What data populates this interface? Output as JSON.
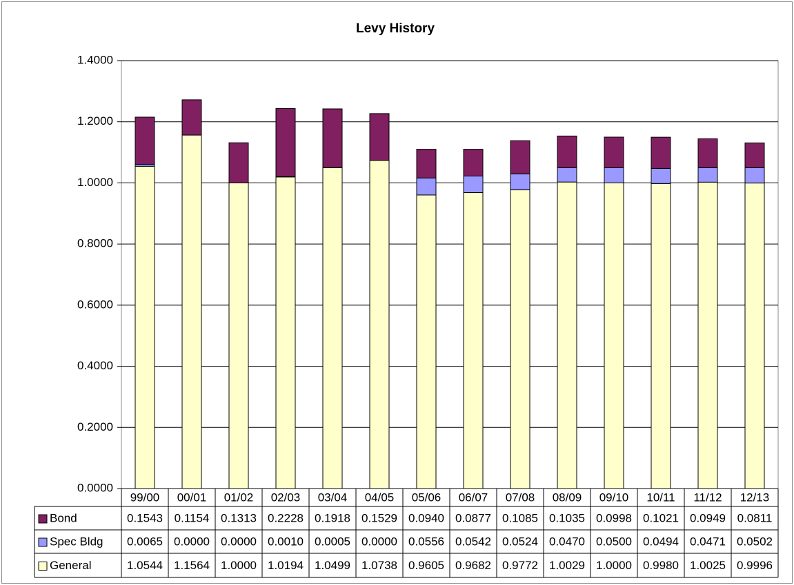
{
  "chart_data": {
    "type": "stacked_bar",
    "title": "Levy History",
    "categories": [
      "99/00",
      "00/01",
      "01/02",
      "02/03",
      "03/04",
      "04/05",
      "05/06",
      "06/07",
      "07/08",
      "08/09",
      "09/10",
      "10/11",
      "11/12",
      "12/13"
    ],
    "series": [
      {
        "name": "Bond",
        "color": "#802060",
        "values": [
          0.1543,
          0.1154,
          0.1313,
          0.2228,
          0.1918,
          0.1529,
          0.094,
          0.0877,
          0.1085,
          0.1035,
          0.0998,
          0.1021,
          0.0949,
          0.0811
        ],
        "value_labels": [
          "0.1543",
          "0.1154",
          "0.1313",
          "0.2228",
          "0.1918",
          "0.1529",
          "0.0940",
          "0.0877",
          "0.1085",
          "0.1035",
          "0.0998",
          "0.1021",
          "0.0949",
          "0.0811"
        ]
      },
      {
        "name": "Spec Bldg",
        "color": "#9999ff",
        "values": [
          0.0065,
          0,
          0,
          0.001,
          0.0005,
          0,
          0.0556,
          0.0542,
          0.0524,
          0.047,
          0.05,
          0.0494,
          0.0471,
          0.0502
        ],
        "value_labels": [
          "0.0065",
          "0.0000",
          "0.0000",
          "0.0010",
          "0.0005",
          "0.0000",
          "0.0556",
          "0.0542",
          "0.0524",
          "0.0470",
          "0.0500",
          "0.0494",
          "0.0471",
          "0.0502"
        ]
      },
      {
        "name": "General",
        "color": "#ffffcc",
        "values": [
          1.0544,
          1.1564,
          1,
          1.0194,
          1.0499,
          1.0738,
          0.9605,
          0.9682,
          0.9772,
          1.0029,
          1,
          0.998,
          1.0025,
          0.9996
        ],
        "value_labels": [
          "1.0544",
          "1.1564",
          "1.0000",
          "1.0194",
          "1.0499",
          "1.0738",
          "0.9605",
          "0.9682",
          "0.9772",
          "1.0029",
          "1.0000",
          "0.9980",
          "1.0025",
          "0.9996"
        ]
      }
    ],
    "ylim": [
      0,
      1.4
    ],
    "yticks": [
      {
        "value": 0,
        "label": "0.0000"
      },
      {
        "value": 0.2,
        "label": "0.2000"
      },
      {
        "value": 0.4,
        "label": "0.4000"
      },
      {
        "value": 0.6,
        "label": "0.6000"
      },
      {
        "value": 0.8,
        "label": "0.8000"
      },
      {
        "value": 1,
        "label": "1.0000"
      },
      {
        "value": 1.2,
        "label": "1.2000"
      },
      {
        "value": 1.4,
        "label": "1.4000"
      }
    ],
    "grid": true
  }
}
